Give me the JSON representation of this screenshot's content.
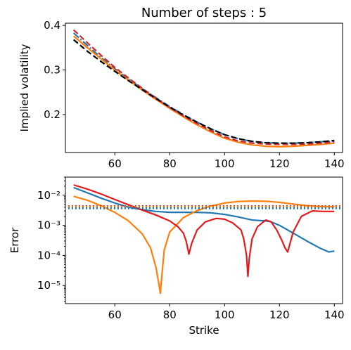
{
  "chart_data": [
    {
      "type": "line",
      "title": "Number of steps : 5",
      "xlabel": "",
      "ylabel": "Implied volatility",
      "xlim": [
        42,
        143
      ],
      "ylim": [
        0.115,
        0.405
      ],
      "xticks": [
        60,
        80,
        100,
        120,
        140
      ],
      "yticks": [
        0.2,
        0.3,
        0.4
      ],
      "xtick_labels": [
        "60",
        "80",
        "100",
        "120",
        "140"
      ],
      "ytick_labels": [
        "0.2",
        "0.3",
        "0.4"
      ],
      "grid": false,
      "series": [
        {
          "color": "#1f77b4",
          "style": "dashdot",
          "x": [
            45,
            50,
            55,
            60,
            65,
            70,
            75,
            80,
            85,
            90,
            95,
            100,
            105,
            110,
            115,
            120,
            125,
            130,
            135,
            140
          ],
          "y": [
            0.383,
            0.355,
            0.328,
            0.303,
            0.28,
            0.258,
            0.238,
            0.218,
            0.2,
            0.183,
            0.168,
            0.155,
            0.146,
            0.14,
            0.137,
            0.136,
            0.136,
            0.137,
            0.139,
            0.141
          ]
        },
        {
          "color": "#ff7f0e",
          "style": "solid",
          "x": [
            45,
            50,
            55,
            60,
            65,
            70,
            75,
            80,
            85,
            90,
            95,
            100,
            105,
            110,
            115,
            120,
            125,
            130,
            135,
            140
          ],
          "y": [
            0.376,
            0.35,
            0.325,
            0.3,
            0.277,
            0.255,
            0.234,
            0.214,
            0.195,
            0.177,
            0.161,
            0.147,
            0.138,
            0.132,
            0.129,
            0.128,
            0.129,
            0.131,
            0.133,
            0.136
          ]
        },
        {
          "color": "#d62728",
          "style": "dashed",
          "x": [
            45,
            50,
            55,
            60,
            65,
            70,
            75,
            80,
            85,
            90,
            95,
            100,
            105,
            110,
            115,
            120,
            125,
            130,
            135,
            140
          ],
          "y": [
            0.39,
            0.361,
            0.333,
            0.306,
            0.282,
            0.259,
            0.237,
            0.216,
            0.197,
            0.18,
            0.164,
            0.15,
            0.141,
            0.136,
            0.134,
            0.133,
            0.133,
            0.134,
            0.136,
            0.138
          ]
        },
        {
          "color": "#000000",
          "style": "dashed",
          "x": [
            45,
            50,
            55,
            60,
            65,
            70,
            75,
            80,
            85,
            90,
            95,
            100,
            105,
            110,
            115,
            120,
            125,
            130,
            135,
            140
          ],
          "y": [
            0.368,
            0.342,
            0.319,
            0.297,
            0.276,
            0.256,
            0.236,
            0.217,
            0.199,
            0.183,
            0.168,
            0.155,
            0.146,
            0.14,
            0.137,
            0.136,
            0.136,
            0.137,
            0.139,
            0.142
          ]
        }
      ]
    },
    {
      "type": "line",
      "title": "",
      "xlabel": "Strike",
      "ylabel": "Error",
      "scale_y": "log",
      "xlim": [
        42,
        143
      ],
      "ylim": [
        2.5e-06,
        0.04
      ],
      "xticks": [
        60,
        80,
        100,
        120,
        140
      ],
      "xtick_labels": [
        "60",
        "80",
        "100",
        "120",
        "140"
      ],
      "yticks": [
        1e-05,
        0.0001,
        0.001,
        0.01
      ],
      "ytick_labels": [
        "10⁻⁵",
        "10⁻⁴",
        "10⁻³",
        "10⁻²"
      ],
      "grid": false,
      "series": [
        {
          "color": "#1f77b4",
          "style": "solid",
          "x": [
            45,
            50,
            55,
            60,
            65,
            70,
            75,
            80,
            85,
            90,
            95,
            100,
            105,
            110,
            115,
            117,
            120,
            125,
            130,
            135,
            138,
            140
          ],
          "y": [
            0.018,
            0.012,
            0.008,
            0.0055,
            0.004,
            0.0033,
            0.0029,
            0.0027,
            0.0027,
            0.0027,
            0.0026,
            0.0023,
            0.0019,
            0.0015,
            0.0014,
            0.0013,
            0.001,
            0.00055,
            0.0003,
            0.00017,
            0.00013,
            0.00014
          ]
        },
        {
          "color": "#ff7f0e",
          "style": "solid",
          "x": [
            45,
            50,
            55,
            60,
            65,
            70,
            73,
            75,
            76,
            76.6,
            77,
            78,
            80,
            85,
            90,
            95,
            100,
            105,
            110,
            115,
            120,
            125,
            130,
            135,
            140
          ],
          "y": [
            0.0092,
            0.0068,
            0.0045,
            0.0027,
            0.0014,
            0.00052,
            0.00018,
            4e-05,
            1.2e-05,
            5.5e-06,
            1.5e-05,
            0.00015,
            0.0006,
            0.0018,
            0.0031,
            0.0044,
            0.0055,
            0.0062,
            0.0064,
            0.0063,
            0.0058,
            0.0051,
            0.0045,
            0.0042,
            0.0041
          ]
        },
        {
          "color": "#e41a1c",
          "style": "solid",
          "x": [
            45,
            50,
            55,
            60,
            65,
            70,
            75,
            80,
            83,
            85,
            86,
            87,
            88,
            90,
            93,
            97,
            100,
            103,
            106,
            107,
            108,
            108.5,
            109,
            110,
            112,
            115,
            117,
            119,
            121,
            122,
            123,
            125,
            128,
            132,
            136,
            140
          ],
          "y": [
            0.022,
            0.016,
            0.011,
            0.0072,
            0.0048,
            0.0032,
            0.0022,
            0.0014,
            0.0009,
            0.00055,
            0.0003,
            0.00011,
            0.00025,
            0.0007,
            0.0013,
            0.0017,
            0.0016,
            0.0012,
            0.0007,
            0.00035,
            0.0001,
            2e-05,
            8e-05,
            0.00035,
            0.0009,
            0.0015,
            0.0013,
            0.0007,
            0.0003,
            0.00018,
            0.00013,
            0.0006,
            0.002,
            0.003,
            0.0029,
            0.0029
          ]
        },
        {
          "color": "#d62728",
          "style": "dotted",
          "x": [
            43,
            143
          ],
          "y": [
            0.0043,
            0.0043
          ]
        },
        {
          "color": "#ff7f0e",
          "style": "dotted",
          "x": [
            43,
            143
          ],
          "y": [
            0.0041,
            0.0041
          ]
        },
        {
          "color": "#1f77b4",
          "style": "dotted",
          "x": [
            43,
            143
          ],
          "y": [
            0.0037,
            0.0037
          ]
        }
      ]
    }
  ]
}
